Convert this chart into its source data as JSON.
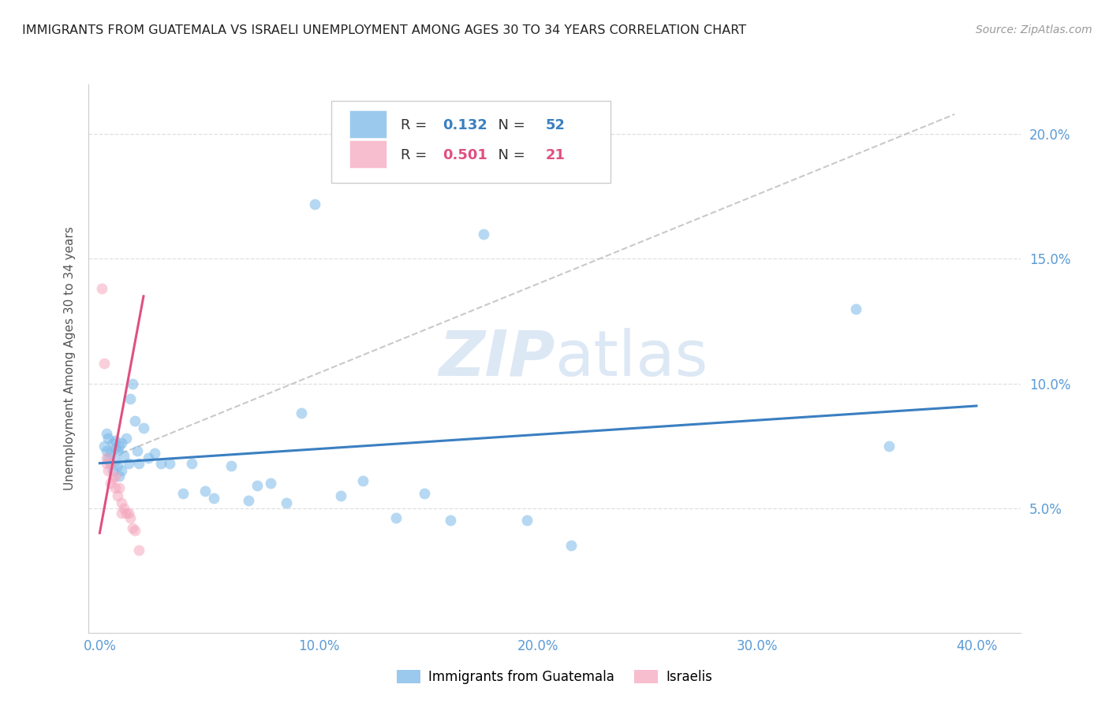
{
  "title": "IMMIGRANTS FROM GUATEMALA VS ISRAELI UNEMPLOYMENT AMONG AGES 30 TO 34 YEARS CORRELATION CHART",
  "source": "Source: ZipAtlas.com",
  "ylabel": "Unemployment Among Ages 30 to 34 years",
  "r_blue": 0.132,
  "n_blue": 52,
  "r_pink": 0.501,
  "n_pink": 21,
  "blue_color": "#7ab8e8",
  "pink_color": "#f5a8bf",
  "line_blue": "#3a7fc1",
  "line_pink": "#e05080",
  "line_gray": "#c0c0c0",
  "background_color": "#ffffff",
  "grid_color": "#d8d8d8",
  "axis_tick_color": "#5b9bd5",
  "scatter_alpha": 0.55,
  "scatter_size": 100,
  "ylim_low": 0.0,
  "ylim_high": 0.22,
  "xlim_low": -0.005,
  "xlim_high": 0.42,
  "blue_x": [
    0.002,
    0.003,
    0.003,
    0.004,
    0.004,
    0.005,
    0.005,
    0.006,
    0.006,
    0.007,
    0.007,
    0.007,
    0.008,
    0.008,
    0.009,
    0.009,
    0.01,
    0.01,
    0.011,
    0.012,
    0.013,
    0.014,
    0.015,
    0.016,
    0.017,
    0.018,
    0.02,
    0.022,
    0.025,
    0.028,
    0.032,
    0.038,
    0.042,
    0.048,
    0.052,
    0.06,
    0.068,
    0.072,
    0.078,
    0.085,
    0.092,
    0.098,
    0.11,
    0.12,
    0.135,
    0.148,
    0.16,
    0.175,
    0.195,
    0.215,
    0.345,
    0.36
  ],
  "blue_y": [
    0.075,
    0.073,
    0.08,
    0.07,
    0.078,
    0.072,
    0.068,
    0.076,
    0.065,
    0.077,
    0.074,
    0.069,
    0.073,
    0.067,
    0.075,
    0.063,
    0.076,
    0.065,
    0.071,
    0.078,
    0.068,
    0.094,
    0.1,
    0.085,
    0.073,
    0.068,
    0.082,
    0.07,
    0.072,
    0.068,
    0.068,
    0.056,
    0.068,
    0.057,
    0.054,
    0.067,
    0.053,
    0.059,
    0.06,
    0.052,
    0.088,
    0.172,
    0.055,
    0.061,
    0.046,
    0.056,
    0.045,
    0.16,
    0.045,
    0.035,
    0.13,
    0.075
  ],
  "pink_x": [
    0.001,
    0.002,
    0.003,
    0.003,
    0.004,
    0.005,
    0.005,
    0.006,
    0.007,
    0.007,
    0.008,
    0.009,
    0.01,
    0.01,
    0.011,
    0.012,
    0.013,
    0.014,
    0.015,
    0.016,
    0.018
  ],
  "pink_y": [
    0.138,
    0.108,
    0.07,
    0.068,
    0.065,
    0.068,
    0.06,
    0.062,
    0.063,
    0.058,
    0.055,
    0.058,
    0.052,
    0.048,
    0.05,
    0.048,
    0.048,
    0.046,
    0.042,
    0.041,
    0.033
  ],
  "blue_line_x": [
    0.0,
    0.4
  ],
  "blue_line_y": [
    0.068,
    0.091
  ],
  "pink_line_x": [
    0.0,
    0.02
  ],
  "pink_line_y": [
    0.04,
    0.135
  ],
  "gray_line_x": [
    0.01,
    0.39
  ],
  "gray_line_y": [
    0.072,
    0.208
  ]
}
